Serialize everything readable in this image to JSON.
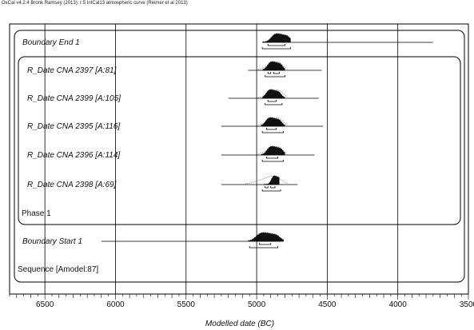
{
  "header": "OxCal v4.2.4 Bronk Ramsey (2013); r:5 IntCal13 atmospheric curve (Reimer et al 2013)",
  "chart_data": {
    "type": "oxcal-multiplot",
    "xlabel": "Modelled date (BC)",
    "xlim": [
      6750,
      3500
    ],
    "x_ticks": [
      6500,
      6000,
      5500,
      5000,
      4500,
      4000,
      3500
    ],
    "grid": true,
    "rows": [
      {
        "label": "Boundary End 1",
        "italic": true,
        "type": "boundary",
        "peak": 4830,
        "core": [
          4960,
          4760
        ],
        "tail": [
          4960,
          3750
        ],
        "prior": null,
        "hpd68": [
          [
            4920,
            4800
          ]
        ],
        "hpd95": [
          [
            4960,
            4760
          ]
        ]
      },
      {
        "label": "R_Date CNA 2397 [A:81]",
        "italic": true,
        "type": "date",
        "peak": 4870,
        "core": [
          4960,
          4800
        ],
        "tail": [
          5060,
          4540
        ],
        "prior": [
          4990,
          4780
        ],
        "hpd68": [
          [
            4920,
            4900
          ],
          [
            4880,
            4840
          ]
        ],
        "hpd95": [
          [
            4940,
            4800
          ]
        ]
      },
      {
        "label": "R_Date CNA 2399 [A:105]",
        "italic": true,
        "type": "date",
        "peak": 4880,
        "core": [
          4960,
          4800
        ],
        "tail": [
          5200,
          4560
        ],
        "prior": [
          4990,
          4780
        ],
        "hpd68": [
          [
            4920,
            4860
          ]
        ],
        "hpd95": [
          [
            4940,
            4820
          ]
        ]
      },
      {
        "label": "R_Date CNA 2395 [A:116]",
        "italic": true,
        "type": "date",
        "peak": 4880,
        "core": [
          4970,
          4800
        ],
        "tail": [
          5250,
          4530
        ],
        "prior": [
          5000,
          4780
        ],
        "hpd68": [
          [
            4930,
            4860
          ]
        ],
        "hpd95": [
          [
            4960,
            4810
          ]
        ]
      },
      {
        "label": "R_Date CNA 2396 [A:114]",
        "italic": true,
        "type": "date",
        "peak": 4870,
        "core": [
          4970,
          4800
        ],
        "tail": [
          5250,
          4590
        ],
        "prior": [
          5000,
          4780
        ],
        "hpd68": [
          [
            4930,
            4850
          ]
        ],
        "hpd95": [
          [
            4960,
            4810
          ]
        ]
      },
      {
        "label": "R_Date CNA 2398 [A:69]",
        "italic": true,
        "type": "date",
        "peak": 4860,
        "core": [
          4950,
          4840
        ],
        "tail": [
          5250,
          4710
        ],
        "prior": [
          5080,
          4780
        ],
        "hpd68": [
          [
            4940,
            4920
          ],
          [
            4900,
            4870
          ]
        ],
        "hpd95": [
          [
            4960,
            4830
          ]
        ]
      },
      {
        "label": "Phase 1",
        "italic": false,
        "type": "label"
      },
      {
        "label": "Boundary Start 1",
        "italic": true,
        "type": "boundary",
        "peak": 4920,
        "core": [
          5060,
          4810
        ],
        "tail": [
          6100,
          4810
        ],
        "prior": null,
        "hpd68": [
          [
            4980,
            4900
          ]
        ],
        "hpd95": [
          [
            5050,
            4850
          ]
        ]
      },
      {
        "label": "Sequence [Amodel:87]",
        "italic": false,
        "type": "label"
      }
    ]
  }
}
